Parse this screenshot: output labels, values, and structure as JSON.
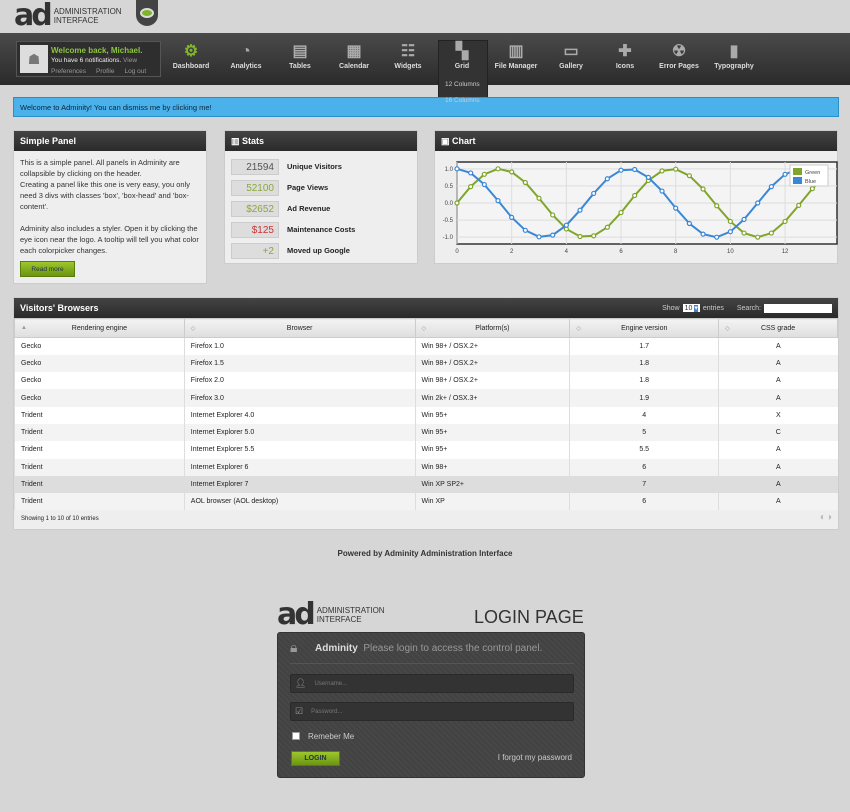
{
  "header": {
    "logo_mark": "ad",
    "logo_text1": "ADMINISTRATION",
    "logo_text2": "INTERFACE",
    "styler_icon": "eye-icon"
  },
  "user": {
    "welcome": "Welcome back, Michael.",
    "notifications": "You have 6 notifications.",
    "view": "View",
    "links": [
      "Preferences",
      "Profile",
      "Log out"
    ]
  },
  "nav": {
    "items": [
      {
        "label": "Dashboard",
        "icon": "gear-icon",
        "glyph": "⚙"
      },
      {
        "label": "Analytics",
        "icon": "gauge-icon",
        "glyph": "◔"
      },
      {
        "label": "Tables",
        "icon": "tray-icon",
        "glyph": "▤"
      },
      {
        "label": "Calendar",
        "icon": "calendar-icon",
        "glyph": "▦"
      },
      {
        "label": "Widgets",
        "icon": "sliders-icon",
        "glyph": "☷"
      },
      {
        "label": "Grid",
        "icon": "grid-icon",
        "glyph": "▚"
      },
      {
        "label": "File Manager",
        "icon": "cabinet-icon",
        "glyph": "▥"
      },
      {
        "label": "Gallery",
        "icon": "picture-icon",
        "glyph": "▭"
      },
      {
        "label": "Icons",
        "icon": "puzzle-icon",
        "glyph": "✚"
      },
      {
        "label": "Error Pages",
        "icon": "radiation-icon",
        "glyph": "☢"
      },
      {
        "label": "Typography",
        "icon": "book-icon",
        "glyph": "▮"
      }
    ],
    "grid_submenu": [
      "12 Columns",
      "16 Columns"
    ]
  },
  "alert": "Welcome to Adminity! You can dismiss me by clicking me!",
  "simple_panel": {
    "title": "Simple Panel",
    "p1": "This is a simple panel. All panels in Adminity are collapsible by clicking on the header.",
    "p2": "Creating a panel like this one is very easy, you only need 3 divs with classes 'box', 'box-head' and 'box-content'.",
    "p3": "Adminity also includes a styler. Open it by clicking the eye icon near the logo. A tooltip will tell you what color each colorpicker changes.",
    "button": "Read more"
  },
  "stats": {
    "title": "Stats",
    "items": [
      {
        "value": "21594",
        "label": "Unique Visitors",
        "color": "#555555"
      },
      {
        "value": "52100",
        "label": "Page Views",
        "color": "#8aa83a"
      },
      {
        "value": "$2652",
        "label": "Ad Revenue",
        "color": "#8aa83a"
      },
      {
        "value": "$125",
        "label": "Maintenance Costs",
        "color": "#cc3333"
      },
      {
        "value": "+2",
        "label": "Moved up Google",
        "color": "#8aa83a"
      }
    ]
  },
  "chart_panel": {
    "title": "Chart"
  },
  "chart_data": {
    "type": "line",
    "xlim": [
      0,
      13.9
    ],
    "ylim": [
      -1.2,
      1.2
    ],
    "grid": true,
    "legend": "top-right",
    "xticks": [
      "0",
      "2",
      "4",
      "6",
      "8",
      "10",
      "12"
    ],
    "yticks": [
      "1.0",
      "0.5",
      "0.0",
      "-0.5",
      "-1.0"
    ],
    "x": [
      0,
      0.5,
      1,
      1.5,
      2,
      2.5,
      3,
      3.5,
      4,
      4.5,
      5,
      5.5,
      6,
      6.5,
      7,
      7.5,
      8,
      8.5,
      9,
      9.5,
      10,
      10.5,
      11,
      11.5,
      12,
      12.5,
      13,
      13.5
    ],
    "series": [
      {
        "name": "Green",
        "color": "#7fa52a",
        "values": [
          0,
          0.48,
          0.84,
          1.0,
          0.91,
          0.6,
          0.14,
          -0.35,
          -0.76,
          -0.98,
          -0.96,
          -0.71,
          -0.28,
          0.22,
          0.66,
          0.94,
          0.99,
          0.8,
          0.41,
          -0.08,
          -0.54,
          -0.88,
          -1.0,
          -0.88,
          -0.54,
          -0.07,
          0.42,
          0.8
        ]
      },
      {
        "name": "Blue",
        "color": "#3a87d6",
        "values": [
          1.0,
          0.88,
          0.54,
          0.07,
          -0.42,
          -0.8,
          -0.99,
          -0.94,
          -0.65,
          -0.21,
          0.28,
          0.71,
          0.96,
          0.98,
          0.75,
          0.35,
          -0.15,
          -0.6,
          -0.91,
          -1.0,
          -0.84,
          -0.48,
          0.0,
          0.48,
          0.84,
          1.0,
          0.91,
          0.6
        ]
      }
    ]
  },
  "table": {
    "title": "Visitors' Browsers",
    "show": "Show",
    "length": "10",
    "entries": "entries",
    "search": "Search:",
    "columns": [
      "Rendering engine",
      "Browser",
      "Platform(s)",
      "Engine version",
      "CSS grade"
    ],
    "rows": [
      [
        "Gecko",
        "Firefox 1.0",
        "Win 98+ / OSX.2+",
        "1.7",
        "A"
      ],
      [
        "Gecko",
        "Firefox 1.5",
        "Win 98+ / OSX.2+",
        "1.8",
        "A"
      ],
      [
        "Gecko",
        "Firefox 2.0",
        "Win 98+ / OSX.2+",
        "1.8",
        "A"
      ],
      [
        "Gecko",
        "Firefox 3.0",
        "Win 2k+ / OSX.3+",
        "1.9",
        "A"
      ],
      [
        "Trident",
        "Internet Explorer 4.0",
        "Win 95+",
        "4",
        "X"
      ],
      [
        "Trident",
        "Internet Explorer 5.0",
        "Win 95+",
        "5",
        "C"
      ],
      [
        "Trident",
        "Internet Explorer 5.5",
        "Win 95+",
        "5.5",
        "A"
      ],
      [
        "Trident",
        "Internet Explorer 6",
        "Win 98+",
        "6",
        "A"
      ],
      [
        "Trident",
        "Internet Explorer 7",
        "Win XP SP2+",
        "7",
        "A"
      ],
      [
        "Trident",
        "AOL browser (AOL desktop)",
        "Win XP",
        "6",
        "A"
      ]
    ],
    "info": "Showing 1 to 10 of 10 entries"
  },
  "footer": "Powered by Adminity Administration Interface",
  "login": {
    "page_title": "LOGIN PAGE",
    "brand": "Adminity",
    "subtitle": "Please login to access the control panel.",
    "username_placeholder": "Username...",
    "password_placeholder": "Password...",
    "remember": "Remeber Me",
    "button": "LOGIN",
    "forgot": "I forgot my password"
  }
}
